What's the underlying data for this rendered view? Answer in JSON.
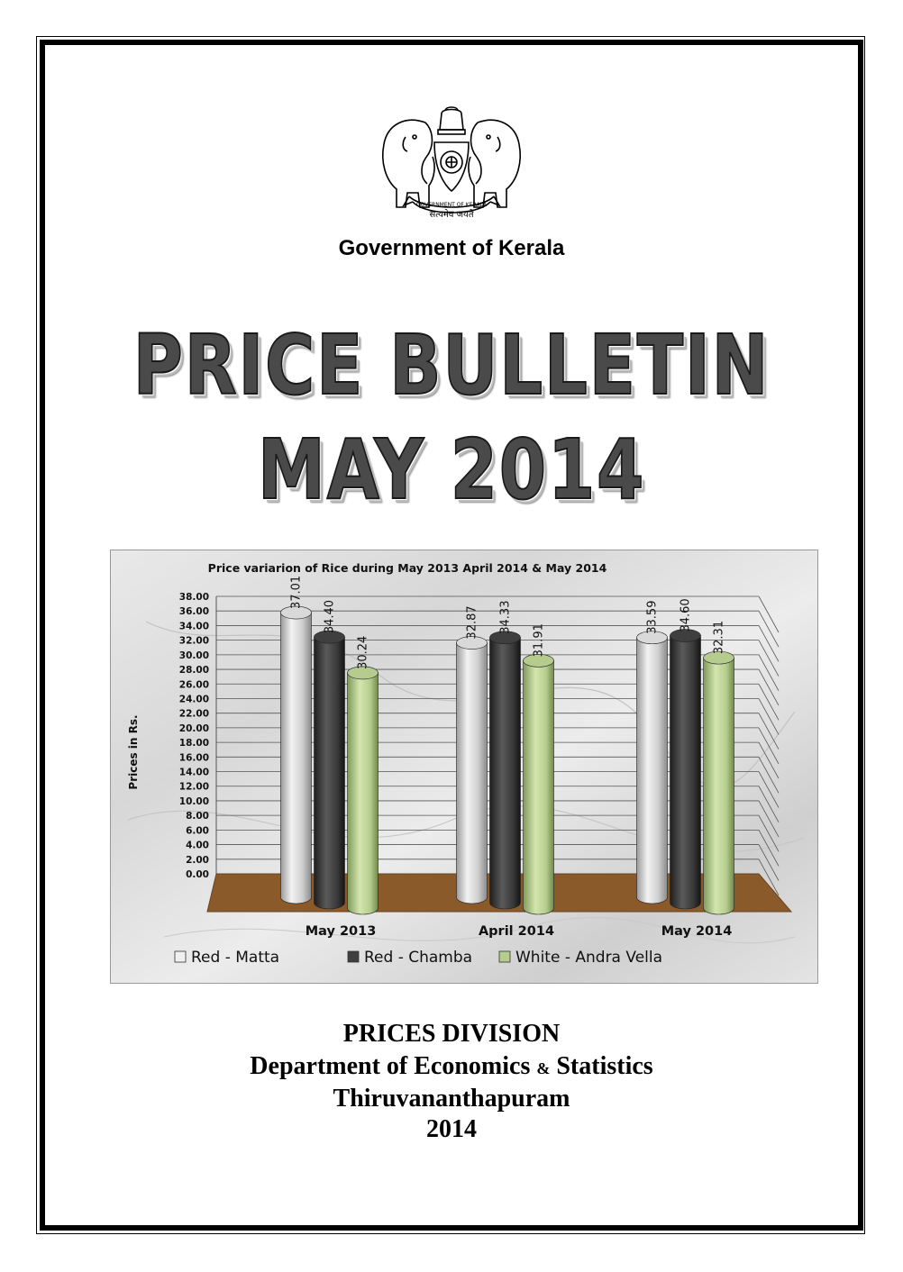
{
  "header": {
    "government": "Government of Kerala",
    "emblem_motto": "सत्यमेव जयते",
    "emblem_ribbon": "GOVERNMENT OF KERALA"
  },
  "title": {
    "line1": "PRICE BULLETIN",
    "line2": "MAY 2014"
  },
  "chart_data": {
    "type": "bar",
    "title": "Price variarion of Rice during May 2013 April 2014 & May 2014",
    "ylabel": "Prices in Rs.",
    "xlabel": "",
    "ylim": [
      0,
      38
    ],
    "yticks": [
      "0.00",
      "2.00",
      "4.00",
      "6.00",
      "8.00",
      "10.00",
      "12.00",
      "14.00",
      "16.00",
      "18.00",
      "20.00",
      "22.00",
      "24.00",
      "26.00",
      "28.00",
      "30.00",
      "32.00",
      "34.00",
      "36.00",
      "38.00"
    ],
    "categories": [
      "May 2013",
      "April 2014",
      "May 2014"
    ],
    "series": [
      {
        "name": "Red - Matta",
        "values": [
          37.01,
          32.87,
          33.59
        ],
        "labels": [
          "37.01",
          "32.87",
          "33.59"
        ],
        "color": "#d9d9d9"
      },
      {
        "name": "Red - Chamba",
        "values": [
          34.4,
          34.33,
          34.6
        ],
        "labels": [
          "34.40",
          "34.33",
          "34.60"
        ],
        "color": "#3f3f3f"
      },
      {
        "name": "White - Andra Vella",
        "values": [
          30.24,
          31.91,
          32.31
        ],
        "labels": [
          "30.24",
          "31.91",
          "32.31"
        ],
        "color": "#b5cc8e"
      }
    ],
    "legend_position": "bottom",
    "grid": true
  },
  "footer": {
    "division": "PRICES DIVISION",
    "dept_part1": "Department of Economics ",
    "dept_amp": "&",
    "dept_part2": " Statistics",
    "city": "Thiruvananthapuram",
    "year": "2014"
  },
  "colors": {
    "title_fill": "#4a4a4a",
    "chart_floor": "#8b5a2b",
    "background": "#ffffff"
  }
}
